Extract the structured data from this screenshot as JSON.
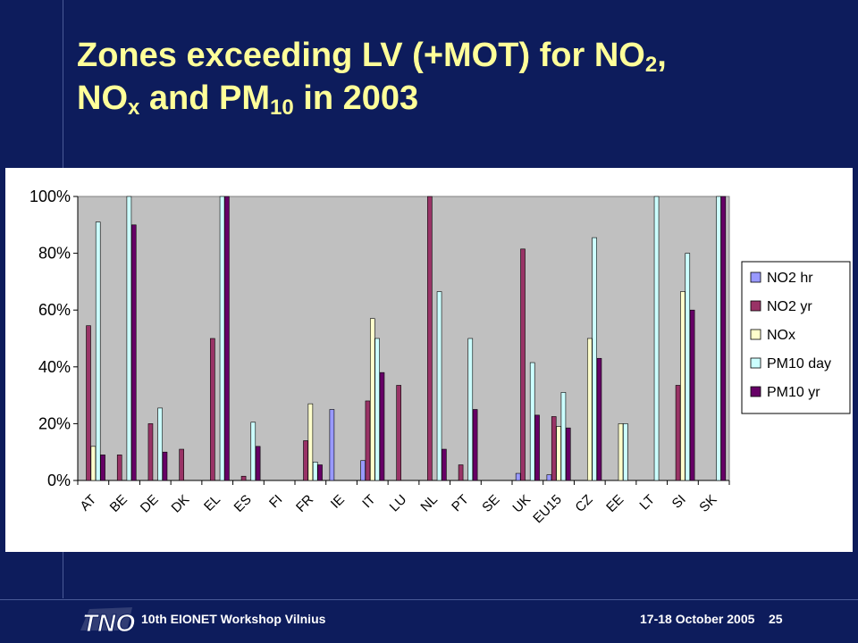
{
  "slide": {
    "title_line1_pre": "Zones exceeding LV (+MOT) for NO",
    "title_line1_sub": "2",
    "title_line1_post": ",",
    "title_line2_a": "NO",
    "title_line2_sub_a": "x",
    "title_line2_b": " and PM",
    "title_line2_sub_b": "10",
    "title_line2_c": " in 2003",
    "footer_left": "10th EIONET Workshop Vilnius",
    "footer_date": "17-18 October 2005",
    "footer_page": "25",
    "logo_text": "TNO"
  },
  "colors": {
    "background": "#0d1c5c",
    "title": "#ffff99",
    "plot_bg": "#c0c0c0",
    "NO2 hr": "#9999ff",
    "NO2 yr": "#993366",
    "NOx": "#ffffcc",
    "PM10 day": "#ccffff",
    "PM10 yr": "#660066"
  },
  "chart_data": {
    "type": "bar",
    "title": "",
    "xlabel": "",
    "ylabel": "",
    "ylim": [
      0,
      1
    ],
    "yticks": [
      "0%",
      "20%",
      "40%",
      "60%",
      "80%",
      "100%"
    ],
    "grid": false,
    "legend_position": "right",
    "categories": [
      "AT",
      "BE",
      "DE",
      "DK",
      "EL",
      "ES",
      "FI",
      "FR",
      "IE",
      "IT",
      "LU",
      "NL",
      "PT",
      "SE",
      "UK",
      "EU15",
      "CZ",
      "EE",
      "LT",
      "SI",
      "SK"
    ],
    "series": [
      {
        "name": "NO2 hr",
        "values": [
          0,
          0,
          0,
          0,
          0,
          0,
          0,
          0,
          0.25,
          0.07,
          0,
          0,
          0,
          0,
          0.025,
          0.02,
          0,
          0,
          0,
          0,
          0
        ]
      },
      {
        "name": "NO2 yr",
        "values": [
          0.545,
          0.09,
          0.2,
          0.11,
          0.5,
          0.015,
          0,
          0.14,
          0,
          0.28,
          0.335,
          1.0,
          0.055,
          0,
          0.815,
          0.225,
          0,
          0,
          0,
          0.335,
          0
        ]
      },
      {
        "name": "NOx",
        "values": [
          0.12,
          0,
          0,
          0,
          0,
          0,
          0,
          0.27,
          0,
          0.57,
          0,
          0,
          0,
          0,
          0,
          0.19,
          0.5,
          0.2,
          0,
          0.665,
          0
        ]
      },
      {
        "name": "PM10 day",
        "values": [
          0.91,
          1.0,
          0.255,
          0,
          1.0,
          0.205,
          0,
          0.065,
          0,
          0.5,
          0,
          0.665,
          0.5,
          0,
          0.415,
          0.31,
          0.855,
          0.2,
          1.0,
          0.8,
          1.0
        ]
      },
      {
        "name": "PM10 yr",
        "values": [
          0.09,
          0.9,
          0.1,
          0,
          1.0,
          0.12,
          0,
          0.055,
          0,
          0.38,
          0,
          0.11,
          0.25,
          0,
          0.23,
          0.185,
          0.43,
          0,
          0,
          0.6,
          1.0
        ]
      }
    ]
  }
}
